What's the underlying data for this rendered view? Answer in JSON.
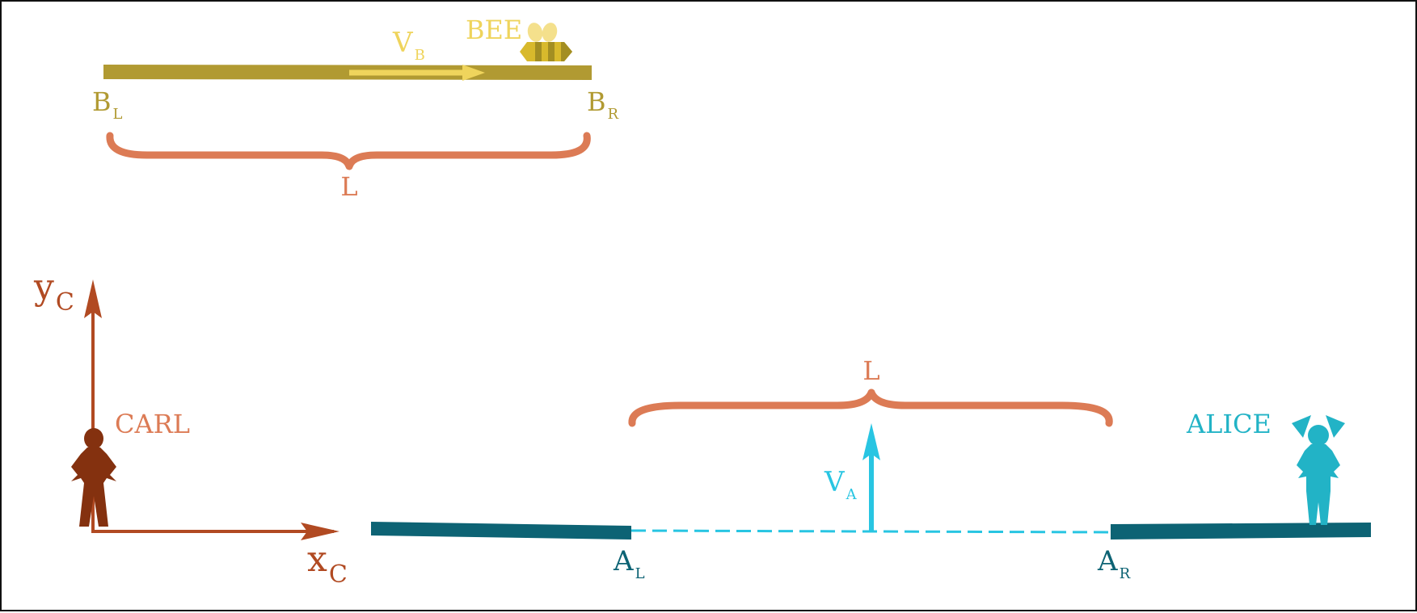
{
  "colors": {
    "bee": "#efd45c",
    "bee_dark": "#a38e22",
    "bee_rod": "#b19a32",
    "brace": "#dc7b55",
    "carl": "#b14a22",
    "carl_body": "#84310f",
    "alice": "#22b3c6",
    "alice_rod": "#0d6374",
    "alice_arrow": "#28c5e2",
    "border": "#111111"
  },
  "bee": {
    "name": "BEE",
    "velocity": {
      "main": "V",
      "sub": "B"
    },
    "left_end": {
      "main": "B",
      "sub": "L"
    },
    "right_end": {
      "main": "B",
      "sub": "R"
    },
    "length_label": "L",
    "icon": "bee-icon"
  },
  "carl": {
    "name": "CARL",
    "y_axis": {
      "main": "y",
      "sub": "C"
    },
    "x_axis": {
      "main": "x",
      "sub": "C"
    },
    "icon": "person-icon"
  },
  "alice": {
    "name": "ALICE",
    "velocity": {
      "main": "V",
      "sub": "A"
    },
    "left_end": {
      "main": "A",
      "sub": "L"
    },
    "right_end": {
      "main": "A",
      "sub": "R"
    },
    "length_label": "L",
    "icon": "girl-icon"
  }
}
